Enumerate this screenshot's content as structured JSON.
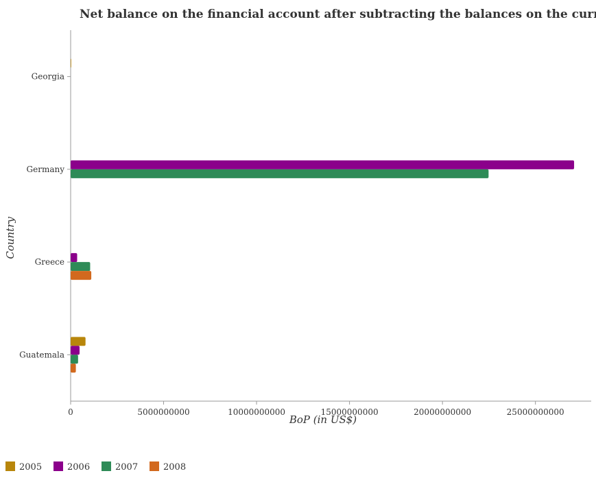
{
  "chart_data": {
    "type": "bar",
    "orientation": "horizontal",
    "title": "Net balance on the financial account after subtracting the balances on the current accounts",
    "xlabel": "BoP (in US$)",
    "ylabel": "Country",
    "categories": [
      "Georgia",
      "Germany",
      "Greece",
      "Guatemala"
    ],
    "series": [
      {
        "name": "2005",
        "color": "#b8860b",
        "values": [
          30000000,
          0,
          0,
          800000000
        ]
      },
      {
        "name": "2006",
        "color": "#8b008b",
        "values": [
          0,
          27080000000,
          350000000,
          480000000
        ]
      },
      {
        "name": "2007",
        "color": "#2e8b57",
        "values": [
          0,
          22480000000,
          1050000000,
          400000000
        ]
      },
      {
        "name": "2008",
        "color": "#d2691e",
        "values": [
          0,
          0,
          1110000000,
          280000000
        ]
      }
    ],
    "xlim": [
      0,
      28000000000
    ],
    "xticks": [
      0,
      5000000000,
      10000000000,
      15000000000,
      20000000000,
      25000000000
    ],
    "xtick_labels": [
      "0",
      "5000000000",
      "10000000000",
      "15000000000",
      "20000000000",
      "25000000000"
    ],
    "grid": false,
    "legend_position": "bottom-left"
  }
}
